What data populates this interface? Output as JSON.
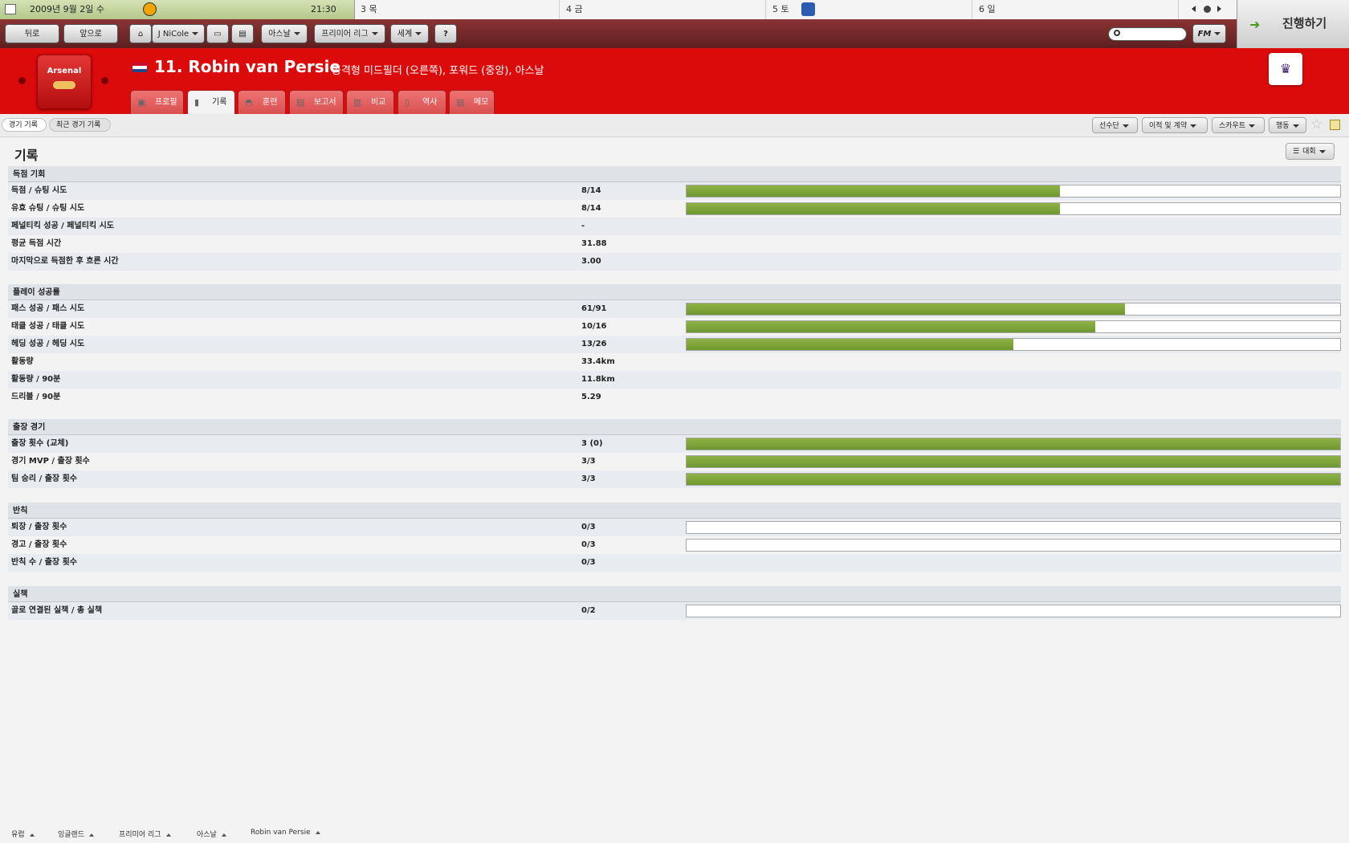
{
  "calendar": {
    "today_date": "2009년 9월 2일 수",
    "today_time": "21:30",
    "days": [
      "3 목",
      "4 금",
      "5 토",
      "6 일"
    ]
  },
  "nav": {
    "back": "뒤로",
    "forward": "앞으로",
    "manager": "J NiCole",
    "club": "아스날",
    "league": "프리미어 리그",
    "world": "세계",
    "help": "?",
    "search_placeholder": "",
    "fm_menu": "FM",
    "continue": "진행하기"
  },
  "header": {
    "crest_text": "Arsenal",
    "player_title": "11. Robin van Persie",
    "positions": "공격형 미드필더 (오른쪽), 포워드 (중앙), 아스날",
    "tabs": [
      "프로필",
      "기록",
      "훈련",
      "보고서",
      "비교",
      "역사",
      "메모"
    ],
    "active_tab": "기록"
  },
  "subbar": {
    "pills": [
      "경기 기록",
      "최근 경기 기록"
    ],
    "actions": [
      "선수단",
      "이적 및 계약",
      "스카우트",
      "행동"
    ]
  },
  "main": {
    "title": "기록",
    "competition_button": "대회",
    "sections": [
      {
        "title": "득점 기회",
        "rows": [
          {
            "label": "득점 / 슈팅 시도",
            "value": "8/14",
            "fraction": 0.5714
          },
          {
            "label": "유효 슈팅 / 슈팅 시도",
            "value": "8/14",
            "fraction": 0.5714
          },
          {
            "label": "페널티킥 성공 / 페널티킥 시도",
            "value": "-"
          },
          {
            "label": "평균 득점 시간",
            "value": "31.88"
          },
          {
            "label": "마지막으로 득점한 후 흐른 시간",
            "value": "3.00"
          }
        ]
      },
      {
        "title": "플레이 성공률",
        "rows": [
          {
            "label": "패스 성공 / 패스 시도",
            "value": "61/91",
            "fraction": 0.6703
          },
          {
            "label": "태클 성공 / 태클 시도",
            "value": "10/16",
            "fraction": 0.625
          },
          {
            "label": "헤딩 성공 / 헤딩 시도",
            "value": "13/26",
            "fraction": 0.5
          },
          {
            "label": "활동량",
            "value": "33.4km"
          },
          {
            "label": "활동량 / 90분",
            "value": "11.8km"
          },
          {
            "label": "드리블 / 90분",
            "value": "5.29"
          }
        ]
      },
      {
        "title": "출장 경기",
        "rows": [
          {
            "label": "출장 횟수 (교체)",
            "value": "3 (0)",
            "fraction": 1.0
          },
          {
            "label": "경기 MVP / 출장 횟수",
            "value": "3/3",
            "fraction": 1.0
          },
          {
            "label": "팀 승리 / 출장 횟수",
            "value": "3/3",
            "fraction": 1.0
          }
        ]
      },
      {
        "title": "반칙",
        "rows": [
          {
            "label": "퇴장 / 출장 횟수",
            "value": "0/3",
            "fraction": 0
          },
          {
            "label": "경고 / 출장 횟수",
            "value": "0/3",
            "fraction": 0
          },
          {
            "label": "반칙 수 / 출장 횟수",
            "value": "0/3"
          }
        ]
      },
      {
        "title": "실책",
        "rows": [
          {
            "label": "골로 연결된 실책 / 총 실책",
            "value": "0/2",
            "fraction": 0
          }
        ]
      }
    ]
  },
  "breadcrumb": [
    "유럽",
    "잉글랜드",
    "프리미어 리그",
    "아스날",
    "Robin van Persie"
  ],
  "colors": {
    "header_red": "#dc0b0b",
    "bar_green": "#7ea53a"
  }
}
